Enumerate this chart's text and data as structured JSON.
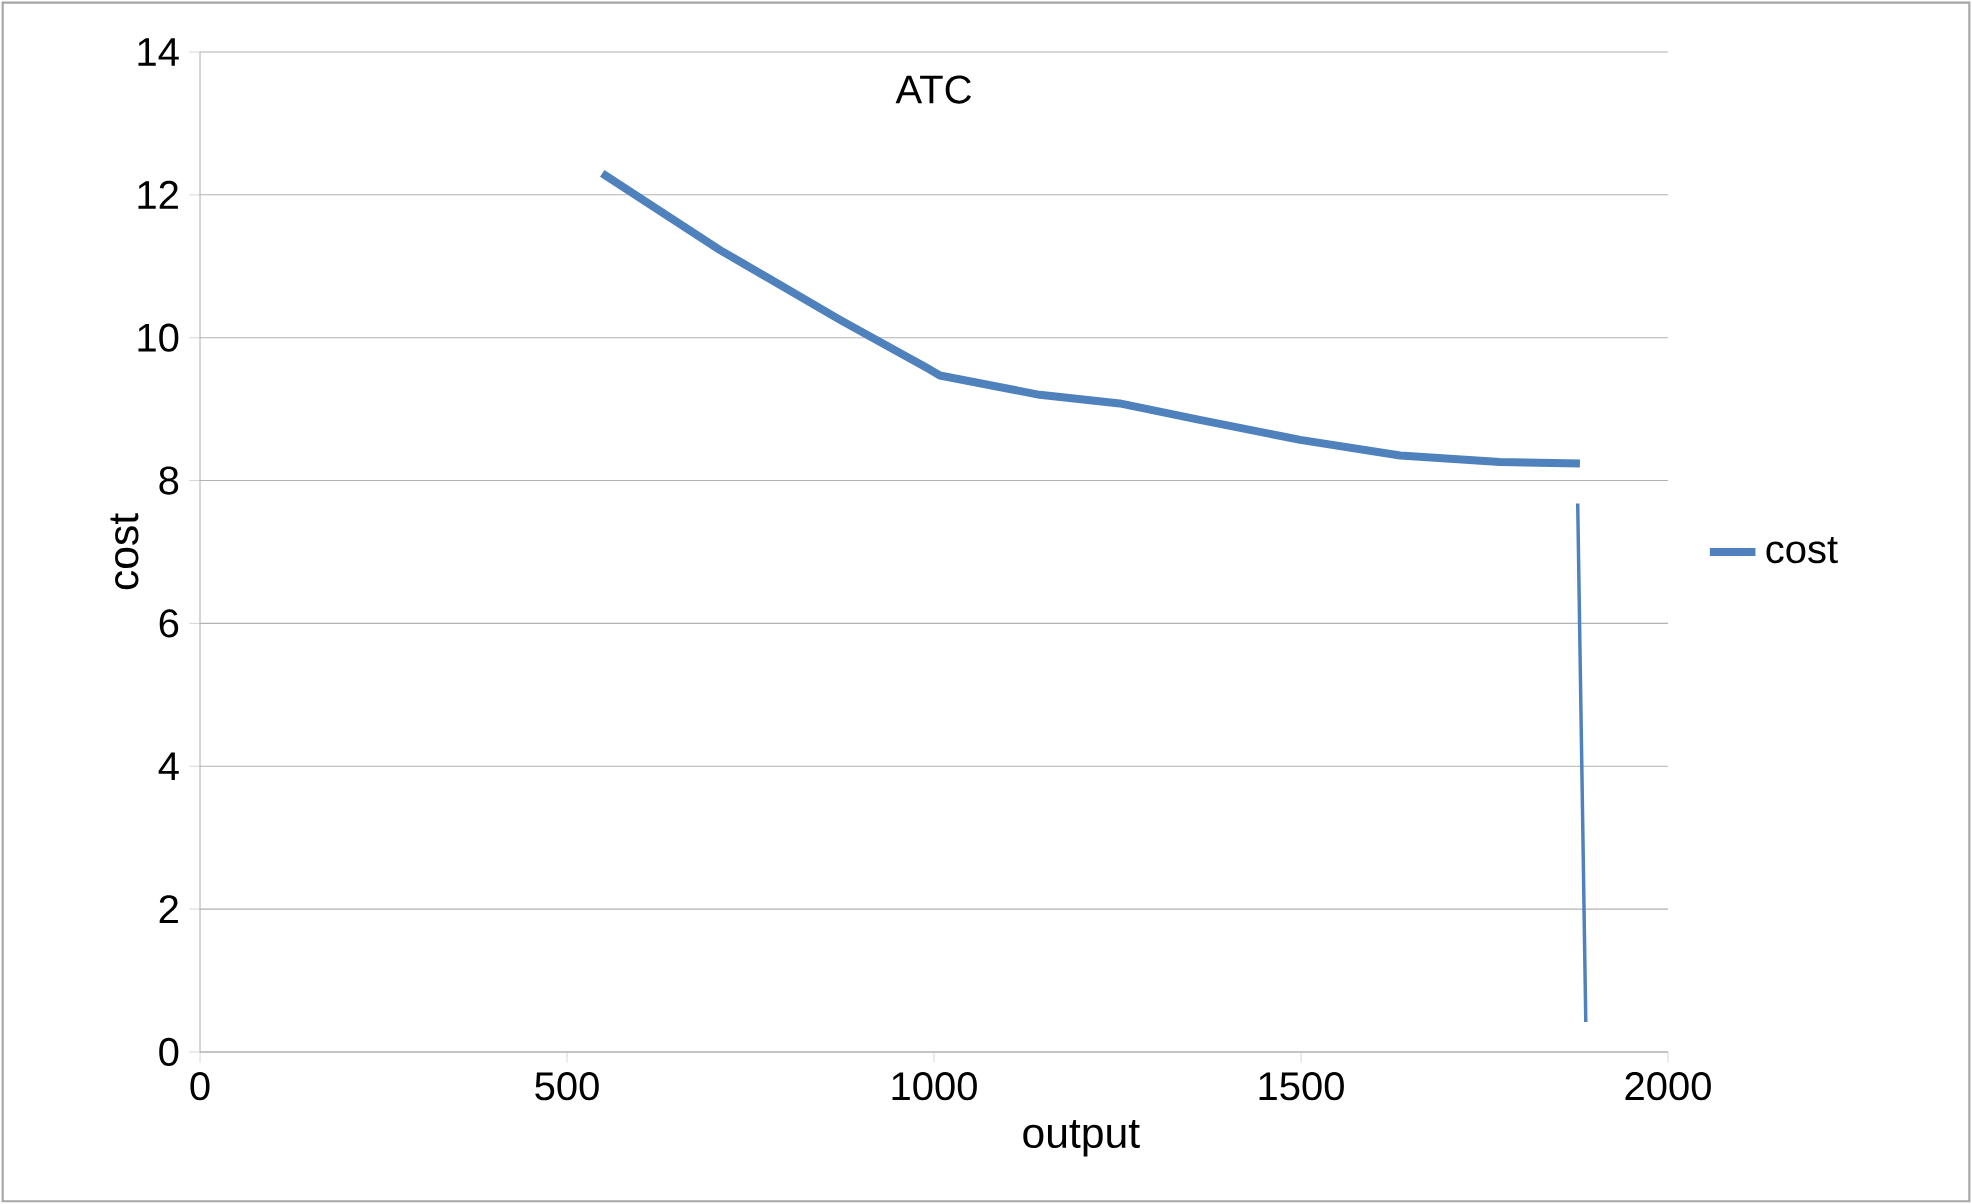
{
  "chart_data": {
    "type": "line",
    "title": "ATC",
    "xlabel": "output",
    "ylabel": "cost",
    "series": [
      {
        "name": "cost",
        "color": "#4f81bd",
        "x": [
          548,
          708,
          872,
          995,
          1008,
          1144,
          1253,
          1362,
          1499,
          1635,
          1771,
          1880
        ],
        "values": [
          12.3,
          11.23,
          10.25,
          9.55,
          9.47,
          9.2,
          9.08,
          8.85,
          8.57,
          8.35,
          8.26,
          8.24
        ]
      },
      {
        "color": "#4f81bd",
        "x": [
          1877,
          1888
        ],
        "values": [
          7.68,
          0.42
        ]
      }
    ],
    "xlim": [
      0,
      2000
    ],
    "xticks": [
      0,
      500,
      1000,
      1500,
      2000
    ],
    "ylim": [
      0,
      14
    ],
    "yticks": [
      0,
      2,
      4,
      6,
      8,
      10,
      12,
      14
    ],
    "grid": "y",
    "legend": "right",
    "marker": "none",
    "line_style": "solid"
  }
}
